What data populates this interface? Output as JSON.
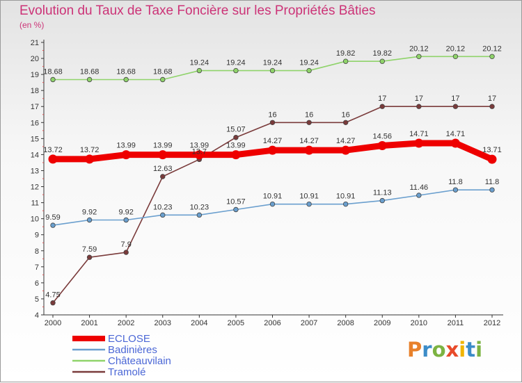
{
  "title": "Evolution du Taux de Taxe Foncière sur les Propriétés Bâties",
  "subtitle": "(en %)",
  "logo": {
    "text": "Proxiti",
    "colors": [
      "#e8812b",
      "#3c8cc8",
      "#7cb342",
      "#e84a2a",
      "#f0b400",
      "#3c8cc8",
      "#7cb342"
    ]
  },
  "chart_data": {
    "type": "line",
    "categories": [
      "2000",
      "2001",
      "2002",
      "2003",
      "2004",
      "2005",
      "2006",
      "2007",
      "2008",
      "2009",
      "2010",
      "2011",
      "2012"
    ],
    "ylim": [
      4,
      21
    ],
    "yticks": [
      4,
      5,
      6,
      7,
      8,
      9,
      10,
      11,
      12,
      13,
      14,
      15,
      16,
      17,
      18,
      19,
      20,
      21
    ],
    "grid": false,
    "legend_position": "bottom-left",
    "series": [
      {
        "name": "ECLOSE",
        "color": "#ee0000",
        "thick": true,
        "values": [
          13.72,
          13.72,
          13.99,
          13.99,
          13.99,
          13.99,
          14.27,
          14.27,
          14.27,
          14.56,
          14.71,
          14.71,
          13.71
        ],
        "labels": [
          "13.72",
          "13.72",
          "13.99",
          "13.99",
          "13.99",
          "13.99",
          "14.27",
          "14.27",
          "14.27",
          "14.56",
          "14.71",
          "14.71",
          "13.71"
        ]
      },
      {
        "name": "Badinières",
        "color": "#6a9fce",
        "values": [
          9.59,
          9.92,
          9.92,
          10.23,
          10.23,
          10.57,
          10.91,
          10.91,
          10.91,
          11.13,
          11.46,
          11.8,
          11.8
        ],
        "labels": [
          "9.59",
          "9.92",
          "9.92",
          "10.23",
          "10.23",
          "10.57",
          "10.91",
          "10.91",
          "10.91",
          "11.13",
          "11.46",
          "11.8",
          "11.8"
        ]
      },
      {
        "name": "Châteauvilain",
        "color": "#8fd36a",
        "values": [
          18.68,
          18.68,
          18.68,
          18.68,
          19.24,
          19.24,
          19.24,
          19.24,
          19.82,
          19.82,
          20.12,
          20.12,
          20.12
        ],
        "labels": [
          "18.68",
          "18.68",
          "18.68",
          "18.68",
          "19.24",
          "19.24",
          "19.24",
          "19.24",
          "19.82",
          "19.82",
          "20.12",
          "20.12",
          "20.12"
        ]
      },
      {
        "name": "Tramolé",
        "color": "#7a3b3b",
        "values": [
          4.75,
          7.59,
          7.9,
          12.63,
          13.7,
          15.07,
          16,
          16,
          16,
          17,
          17,
          17,
          17
        ],
        "labels": [
          "4.75",
          "7.59",
          "7.9",
          "12.63",
          "13.7",
          "15.07",
          "16",
          "16",
          "16",
          "17",
          "17",
          "17",
          "17"
        ]
      }
    ]
  }
}
